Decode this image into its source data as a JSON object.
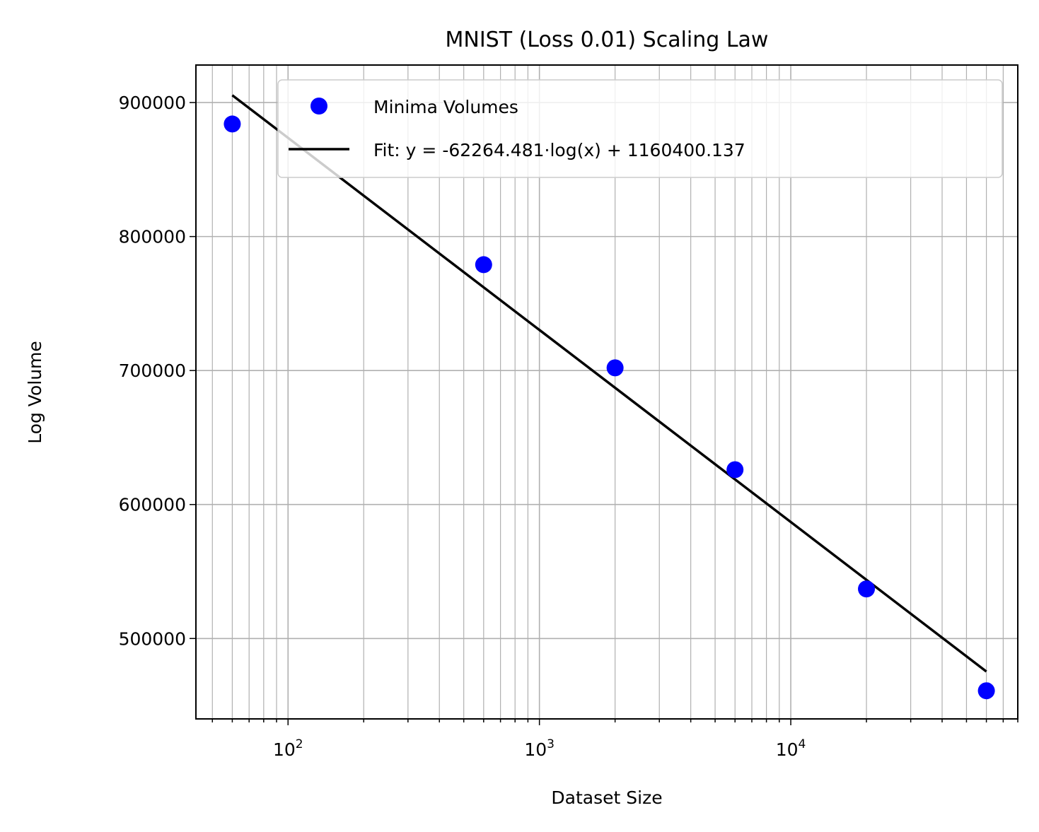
{
  "chart_data": {
    "type": "scatter",
    "title": "MNIST (Loss 0.01) Scaling Law",
    "xlabel": "Dataset Size",
    "ylabel": "Log Volume",
    "xscale": "log",
    "xlim": [
      43,
      80000
    ],
    "ylim": [
      440000,
      928000
    ],
    "grid": true,
    "legend_position": "top-right",
    "x_ticks": [
      {
        "base": "10",
        "exp": "2",
        "value": 100
      },
      {
        "base": "10",
        "exp": "3",
        "value": 1000
      },
      {
        "base": "10",
        "exp": "4",
        "value": 10000
      }
    ],
    "y_ticks": [
      {
        "label": "500000",
        "value": 500000
      },
      {
        "label": "600000",
        "value": 600000
      },
      {
        "label": "700000",
        "value": 700000
      },
      {
        "label": "800000",
        "value": 800000
      },
      {
        "label": "900000",
        "value": 900000
      }
    ],
    "series": [
      {
        "name": "Minima Volumes",
        "kind": "scatter",
        "color": "#0000ff",
        "x": [
          60,
          600,
          2000,
          6000,
          20000,
          60000
        ],
        "y": [
          884000,
          779000,
          702000,
          626000,
          537000,
          461000
        ]
      },
      {
        "name": "Fit: y = -62264.481·log(x) + 1160400.137",
        "kind": "line",
        "color": "#000000",
        "slope": -62264.481,
        "intercept": 1160400.137,
        "x_range": [
          60,
          60000
        ]
      }
    ]
  }
}
